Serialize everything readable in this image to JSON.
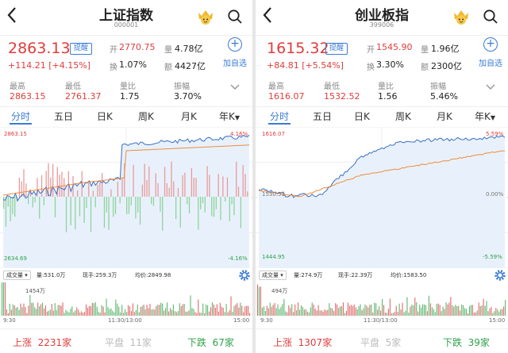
{
  "panels": [
    {
      "title": "上证指数",
      "code": "000001",
      "price": "2863.13",
      "remind": "提醒",
      "change": "+114.21",
      "change_pct": "[+4.15%]",
      "stats": {
        "open_label": "开",
        "open": "2770.75",
        "vol_label": "量",
        "vol": "4.78亿",
        "turnover_label": "换",
        "turnover": "1.07%",
        "amount_label": "额",
        "amount": "4427亿",
        "high_label": "最高",
        "high": "2863.15",
        "low_label": "最低",
        "low": "2761.37",
        "ratio_label": "量比",
        "ratio": "1.75",
        "amp_label": "振幅",
        "amp": "3.70%"
      },
      "add_fav": "加自选",
      "tabs": [
        "分时",
        "五日",
        "日K",
        "周K",
        "月K",
        "年K"
      ],
      "chart": {
        "top_price": "2863.15",
        "top_pct": "4.16%",
        "bottom_price": "2634.69",
        "bottom_pct": "-4.16%",
        "mid_price": "",
        "mid_pct": ""
      },
      "vol_select": "成交量",
      "vol_text1": "量:531.0万",
      "vol_text2": "现手:259.3万",
      "vol_text3": "均价:2849.98",
      "vol_max": "1454万",
      "times": [
        "9:30",
        "11:30/13:00",
        "15:00"
      ],
      "footer": {
        "up_label": "上涨",
        "up": "2231家",
        "flat_label": "平盘",
        "flat": "11家",
        "down_label": "下跌",
        "down": "67家"
      }
    },
    {
      "title": "创业板指",
      "code": "399006",
      "price": "1615.32",
      "remind": "提醒",
      "change": "+84.81",
      "change_pct": "[+5.54%]",
      "stats": {
        "open_label": "开",
        "open": "1545.90",
        "vol_label": "量",
        "vol": "1.96亿",
        "turnover_label": "换",
        "turnover": "3.30%",
        "amount_label": "额",
        "amount": "2300亿",
        "high_label": "最高",
        "high": "1616.07",
        "low_label": "最低",
        "low": "1532.52",
        "ratio_label": "量比",
        "ratio": "1.56",
        "amp_label": "振幅",
        "amp": "5.46%"
      },
      "add_fav": "加自选",
      "tabs": [
        "分时",
        "五日",
        "日K",
        "周K",
        "月K",
        "年K"
      ],
      "chart": {
        "top_price": "1616.07",
        "top_pct": "5.59%",
        "bottom_price": "1444.95",
        "bottom_pct": "-5.59%",
        "mid_price": "1530.51",
        "mid_pct": "0.00%"
      },
      "vol_select": "成交量",
      "vol_text1": "量:274.9万",
      "vol_text2": "现手:22.39万",
      "vol_text3": "均价:1583.50",
      "vol_max": "494万",
      "times": [
        "9:30",
        "11:30/13:00",
        "15:00"
      ],
      "footer": {
        "up_label": "上涨",
        "up": "1307家",
        "flat_label": "平盘",
        "flat": "5家",
        "down_label": "下跌",
        "down": "39家"
      }
    }
  ],
  "colors": {
    "up": "#e03c3c",
    "down": "#2ea14a",
    "accent": "#3a7bd5",
    "price_line": "#3a6fc4",
    "avg_line": "#f08a3c",
    "fill": "#e8f1fb"
  },
  "icons": {
    "back": "chevron-left-icon",
    "vip": "crown-face-icon",
    "search": "search-icon",
    "add": "plus-circle-icon",
    "expand": "chevron-down-icon",
    "settings": "gear-icon"
  }
}
